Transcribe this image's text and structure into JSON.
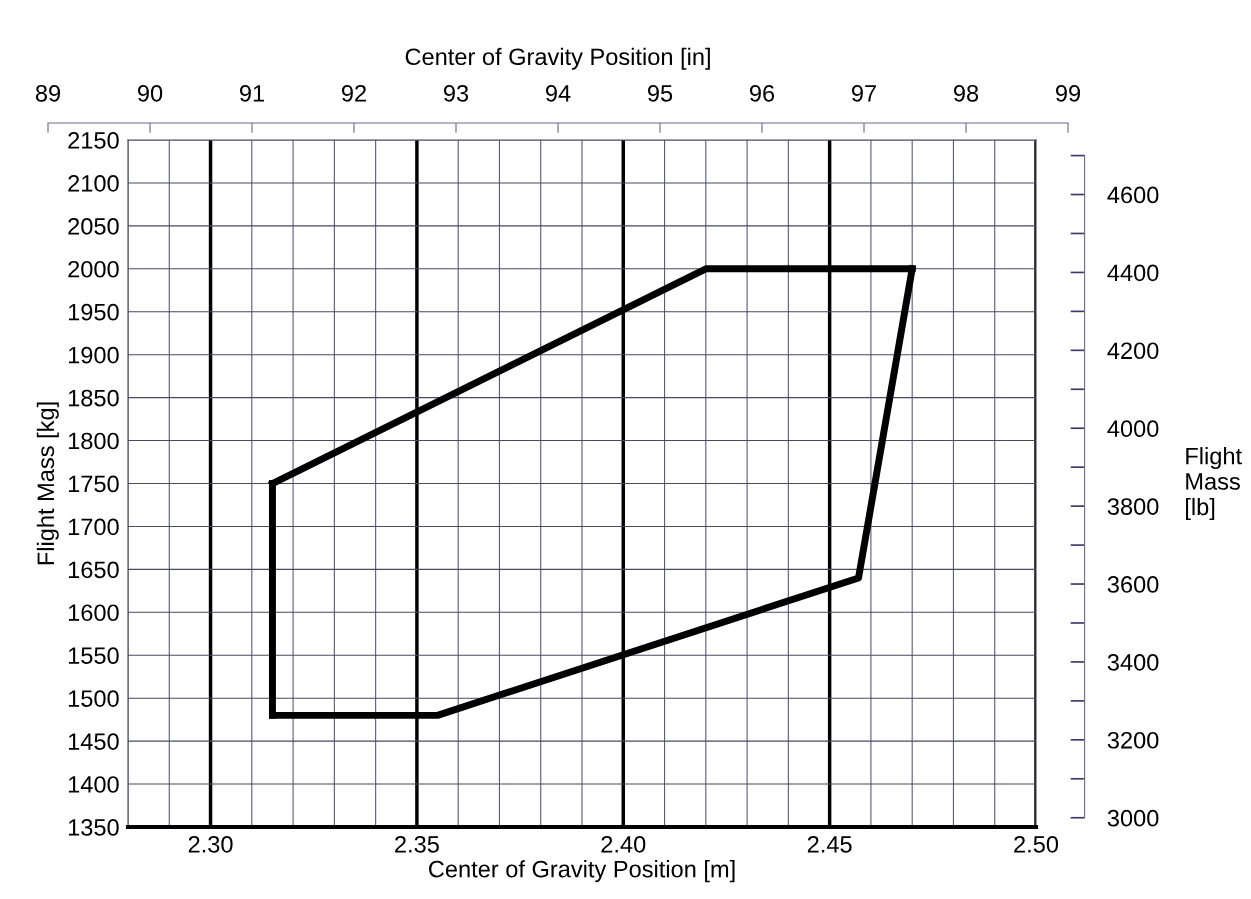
{
  "chart_data": {
    "type": "line",
    "xlabel": "Center of Gravity Position [m]",
    "ylabel": "Flight Mass [kg]",
    "x2label": "Center of Gravity Position [in]",
    "y2label": "Flight\nMass\n[lb]",
    "series": [
      {
        "color": "#000000",
        "x": [
          2.315,
          2.355,
          2.457,
          2.47
        ],
        "values": [
          1480,
          1480,
          1640,
          2000
        ]
      },
      {
        "color": "#000000",
        "x": [
          2.315,
          2.42,
          2.47
        ],
        "values": [
          1750,
          2000,
          2000
        ]
      },
      {
        "color": "#000000",
        "x": [
          2.315,
          2.315
        ],
        "values": [
          1480,
          1750
        ]
      }
    ],
    "xlim": [
      2.28,
      2.5
    ],
    "xticks": [
      {
        "value": 2.28,
        "label": null
      },
      {
        "value": 2.29,
        "label": null
      },
      {
        "value": 2.3,
        "label": "2.30"
      },
      {
        "value": 2.31,
        "label": null
      },
      {
        "value": 2.32,
        "label": null
      },
      {
        "value": 2.33,
        "label": null
      },
      {
        "value": 2.34,
        "label": null
      },
      {
        "value": 2.35,
        "label": "2.35"
      },
      {
        "value": 2.36,
        "label": null
      },
      {
        "value": 2.37,
        "label": null
      },
      {
        "value": 2.38,
        "label": null
      },
      {
        "value": 2.39,
        "label": null
      },
      {
        "value": 2.4,
        "label": "2.40"
      },
      {
        "value": 2.41,
        "label": null
      },
      {
        "value": 2.42,
        "label": null
      },
      {
        "value": 2.43,
        "label": null
      },
      {
        "value": 2.44,
        "label": null
      },
      {
        "value": 2.45,
        "label": "2.45"
      },
      {
        "value": 2.46,
        "label": null
      },
      {
        "value": 2.47,
        "label": null
      },
      {
        "value": 2.48,
        "label": null
      },
      {
        "value": 2.49,
        "label": null
      },
      {
        "value": 2.5,
        "label": "2.50"
      }
    ],
    "ylim": [
      1350,
      2150
    ],
    "yticks": [
      1350,
      1400,
      1450,
      1500,
      1550,
      1600,
      1650,
      1700,
      1750,
      1800,
      1850,
      1900,
      1950,
      2000,
      2050,
      2100,
      2150
    ],
    "x2lim": [
      89,
      99
    ],
    "x2ticks": [
      89,
      90,
      91,
      92,
      93,
      94,
      95,
      96,
      97,
      98,
      99
    ],
    "y2lim": [
      2976.2,
      4740
    ],
    "y2ticks": [
      3000,
      3200,
      3400,
      3600,
      3800,
      4000,
      4200,
      4400,
      4600
    ],
    "grid": true
  }
}
